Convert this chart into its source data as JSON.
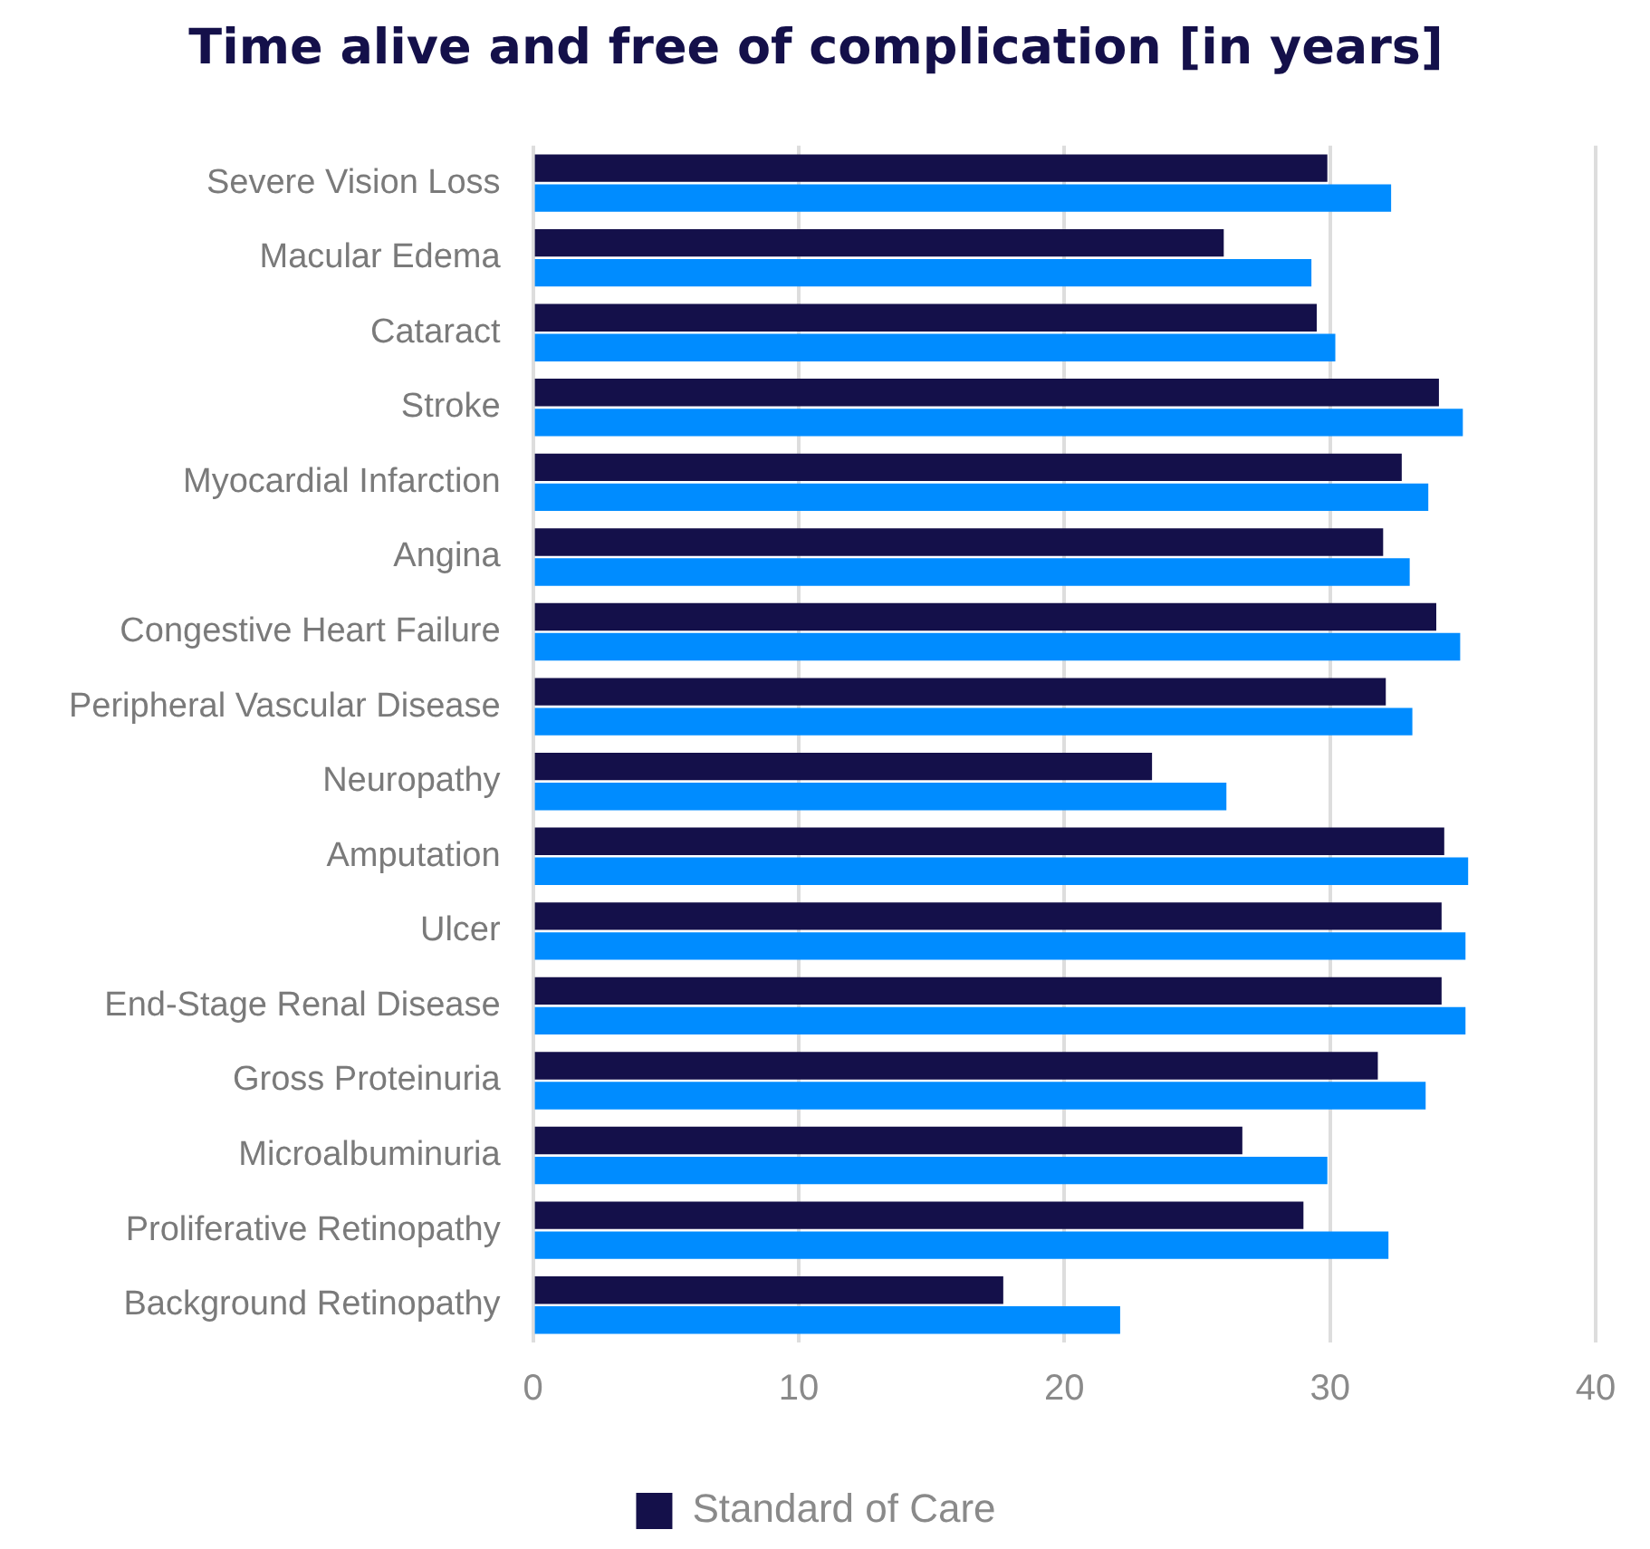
{
  "chart_data": {
    "type": "bar",
    "orientation": "horizontal",
    "title": "Time alive and free of complication [in years]",
    "categories": [
      "Severe Vision Loss",
      "Macular Edema",
      "Cataract",
      "Stroke",
      "Myocardial Infarction",
      "Angina",
      "Congestive Heart Failure",
      "Peripheral Vascular Disease",
      "Neuropathy",
      "Amputation",
      "Ulcer",
      "End-Stage Renal Disease",
      "Gross Proteinuria",
      "Microalbuminuria",
      "Proliferative Retinopathy",
      "Background Retinopathy"
    ],
    "series": [
      {
        "name": "Standard of Care",
        "color": "#14104a",
        "values": [
          29.9,
          26.0,
          29.5,
          34.1,
          32.7,
          32.0,
          34.0,
          32.1,
          23.3,
          34.3,
          34.2,
          34.2,
          31.8,
          26.7,
          29.0,
          17.7
        ]
      },
      {
        "color": "#008cff",
        "values": [
          32.3,
          29.3,
          30.2,
          35.0,
          33.7,
          33.0,
          34.9,
          33.1,
          26.1,
          35.2,
          35.1,
          35.1,
          33.6,
          29.9,
          32.2,
          22.1
        ]
      }
    ],
    "xlim": [
      0,
      40
    ],
    "xticks": [
      0,
      10,
      20,
      30,
      40
    ],
    "grid": "x",
    "legend": "bottom"
  }
}
